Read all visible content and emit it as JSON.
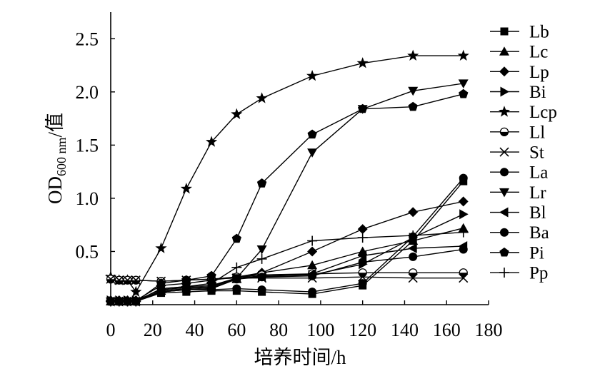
{
  "chart_data": {
    "type": "line",
    "xlabel": "培养时间/h",
    "ylabel": {
      "main": "OD",
      "sub": "600 nm",
      "suffix": "/值"
    },
    "xlim": [
      0,
      180
    ],
    "ylim": [
      0,
      2.75
    ],
    "xticks": [
      0,
      20,
      40,
      60,
      80,
      100,
      120,
      140,
      160,
      180
    ],
    "yticks": [
      "0.5",
      "1.0",
      "1.5",
      "2.0",
      "2.5"
    ],
    "grid": false,
    "legend_position": "right",
    "line_color": "#000000",
    "x": [
      0,
      4,
      8,
      12,
      24,
      36,
      48,
      60,
      72,
      96,
      120,
      144,
      168
    ],
    "series": [
      {
        "name": "Lb",
        "marker": "square",
        "values": [
          0.03,
          0.03,
          0.03,
          0.03,
          0.11,
          0.12,
          0.13,
          0.13,
          0.12,
          0.1,
          0.18,
          0.6,
          1.16
        ]
      },
      {
        "name": "Lc",
        "marker": "triangle-up",
        "values": [
          0.03,
          0.03,
          0.03,
          0.03,
          0.13,
          0.15,
          0.16,
          0.24,
          0.3,
          0.37,
          0.5,
          0.6,
          0.72
        ]
      },
      {
        "name": "Lp",
        "marker": "diamond",
        "values": [
          0.04,
          0.04,
          0.04,
          0.04,
          0.18,
          0.2,
          0.23,
          0.26,
          0.3,
          0.5,
          0.71,
          0.87,
          0.97
        ]
      },
      {
        "name": "Bi",
        "marker": "triangle-right",
        "values": [
          0.04,
          0.04,
          0.04,
          0.04,
          0.14,
          0.16,
          0.17,
          0.25,
          0.27,
          0.28,
          0.38,
          0.63,
          0.85
        ]
      },
      {
        "name": "Lcp",
        "marker": "star",
        "values": [
          0.26,
          0.23,
          0.23,
          0.12,
          0.53,
          1.09,
          1.53,
          1.79,
          1.94,
          2.15,
          2.27,
          2.34,
          2.34
        ]
      },
      {
        "name": "Ll",
        "marker": "half-circle",
        "values": [
          0.24,
          0.23,
          0.23,
          0.23,
          0.22,
          0.23,
          0.24,
          0.26,
          0.28,
          0.29,
          0.3,
          0.3,
          0.3
        ]
      },
      {
        "name": "St",
        "marker": "cross",
        "values": [
          0.24,
          0.23,
          0.23,
          0.23,
          0.22,
          0.23,
          0.24,
          0.25,
          0.25,
          0.25,
          0.26,
          0.25,
          0.25
        ]
      },
      {
        "name": "La",
        "marker": "circle",
        "values": [
          0.03,
          0.03,
          0.03,
          0.03,
          0.12,
          0.14,
          0.14,
          0.15,
          0.14,
          0.12,
          0.2,
          0.64,
          1.19
        ]
      },
      {
        "name": "Lr",
        "marker": "triangle-down",
        "values": [
          0.03,
          0.03,
          0.03,
          0.03,
          0.15,
          0.17,
          0.18,
          0.25,
          0.52,
          1.43,
          1.84,
          2.01,
          2.08
        ]
      },
      {
        "name": "Bl",
        "marker": "triangle-left",
        "values": [
          0.03,
          0.03,
          0.03,
          0.03,
          0.12,
          0.14,
          0.15,
          0.25,
          0.26,
          0.29,
          0.46,
          0.53,
          0.55
        ]
      },
      {
        "name": "Ba",
        "marker": "circle",
        "values": [
          0.03,
          0.03,
          0.03,
          0.03,
          0.12,
          0.14,
          0.15,
          0.24,
          0.26,
          0.27,
          0.4,
          0.45,
          0.52
        ]
      },
      {
        "name": "Pi",
        "marker": "pentagon",
        "values": [
          0.03,
          0.03,
          0.03,
          0.03,
          0.2,
          0.23,
          0.27,
          0.62,
          1.14,
          1.6,
          1.84,
          1.86,
          1.98
        ]
      },
      {
        "name": "Pp",
        "marker": "plus",
        "values": [
          0.03,
          0.03,
          0.03,
          0.03,
          0.15,
          0.17,
          0.2,
          0.35,
          0.43,
          0.6,
          0.63,
          0.65,
          0.68
        ]
      }
    ]
  }
}
